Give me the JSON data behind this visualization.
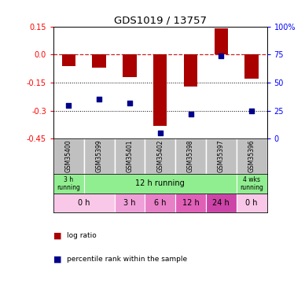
{
  "title": "GDS1019 / 13757",
  "samples": [
    "GSM35400",
    "GSM35399",
    "GSM35401",
    "GSM35402",
    "GSM35398",
    "GSM35397",
    "GSM35396"
  ],
  "log_ratio": [
    -0.06,
    -0.07,
    -0.12,
    -0.38,
    -0.17,
    0.14,
    -0.13
  ],
  "percentile_rank": [
    30,
    35,
    32,
    5,
    22,
    74,
    25
  ],
  "ylim_left": [
    -0.45,
    0.15
  ],
  "ylim_right": [
    0,
    100
  ],
  "yticks_left": [
    0.15,
    0.0,
    -0.15,
    -0.3,
    -0.45
  ],
  "yticks_right": [
    100,
    75,
    50,
    25,
    0
  ],
  "bar_color": "#AA0000",
  "dot_color": "#00008B",
  "bg_color": "#FFFFFF",
  "sample_bg": "#C0C0C0",
  "protocol_data": [
    [
      0,
      1,
      "3 h\nrunning",
      "#90EE90"
    ],
    [
      1,
      6,
      "12 h running",
      "#90EE90"
    ],
    [
      6,
      7,
      "4 wks\nrunning",
      "#90EE90"
    ]
  ],
  "time_data": [
    [
      0,
      2,
      "0 h",
      "#F9C8E8"
    ],
    [
      2,
      3,
      "3 h",
      "#F0A0D8"
    ],
    [
      3,
      4,
      "6 h",
      "#E880C8"
    ],
    [
      4,
      5,
      "12 h",
      "#E060B8"
    ],
    [
      5,
      6,
      "24 h",
      "#CC44A8"
    ],
    [
      6,
      7,
      "0 h",
      "#F9C8E8"
    ]
  ],
  "legend_items": [
    [
      "log ratio",
      "#AA0000"
    ],
    [
      "percentile rank within the sample",
      "#00008B"
    ]
  ]
}
